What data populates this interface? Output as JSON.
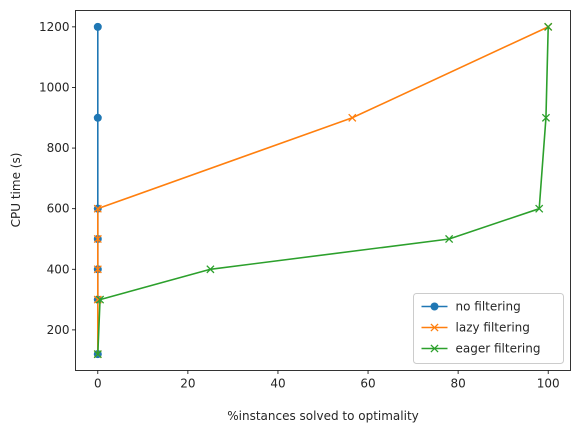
{
  "chart_data": {
    "type": "line",
    "title": "",
    "xlabel": "%instances solved to optimality",
    "ylabel": "CPU time (s)",
    "xlim": [
      -4.95,
      104.95
    ],
    "ylim": [
      66,
      1254
    ],
    "xticks": [
      0,
      20,
      40,
      60,
      80,
      100
    ],
    "yticks": [
      200,
      400,
      600,
      800,
      1000,
      1200
    ],
    "grid": false,
    "legend": "bottom-right",
    "series": [
      {
        "name": "no filtering",
        "color": "#1f77b4",
        "marker": "circle",
        "points": [
          [
            0,
            120
          ],
          [
            0,
            300
          ],
          [
            0,
            400
          ],
          [
            0,
            500
          ],
          [
            0,
            600
          ],
          [
            0,
            900
          ],
          [
            0,
            1200
          ]
        ]
      },
      {
        "name": "lazy filtering",
        "color": "#ff7f0e",
        "marker": "x",
        "points": [
          [
            0,
            120
          ],
          [
            0,
            300
          ],
          [
            0,
            400
          ],
          [
            0,
            500
          ],
          [
            0,
            600
          ],
          [
            56.5,
            900
          ],
          [
            100,
            1200
          ]
        ]
      },
      {
        "name": "eager filtering",
        "color": "#2ca02c",
        "marker": "x",
        "points": [
          [
            0,
            120
          ],
          [
            0.5,
            300
          ],
          [
            25,
            400
          ],
          [
            78,
            500
          ],
          [
            98,
            600
          ],
          [
            99.5,
            900
          ],
          [
            100,
            1200
          ]
        ]
      }
    ]
  }
}
